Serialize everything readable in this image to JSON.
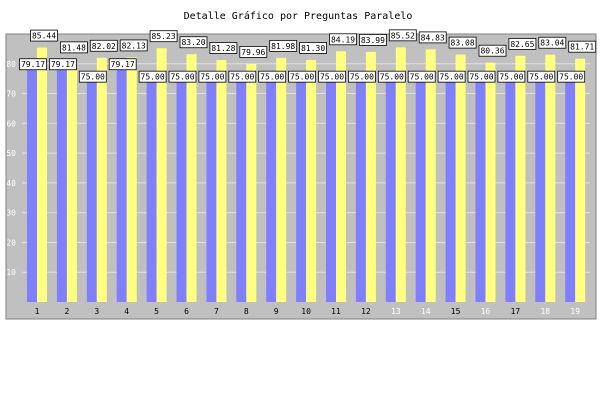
{
  "chart_data": {
    "type": "bar",
    "title": "Detalle Gráfico por Preguntas Paralelo",
    "xlabel": "",
    "ylabel": "",
    "ylim": [
      0,
      90
    ],
    "yticks": [
      10,
      20,
      30,
      40,
      50,
      60,
      70,
      80
    ],
    "grid": true,
    "legend": "none",
    "categories": [
      "1",
      "2",
      "3",
      "4",
      "5",
      "6",
      "7",
      "8",
      "9",
      "10",
      "11",
      "12",
      "13",
      "14",
      "15",
      "16",
      "17",
      "18",
      "19"
    ],
    "series": [
      {
        "color": "#8080ff",
        "values": [
          79.17,
          79.17,
          75.0,
          79.17,
          75.0,
          75.0,
          75.0,
          75.0,
          75.0,
          75.0,
          75.0,
          75.0,
          75.0,
          75.0,
          75.0,
          75.0,
          75.0,
          75.0,
          75.0
        ],
        "labels": [
          "79.17",
          "79.17",
          "75.00",
          "79.17",
          "75.00",
          "75.00",
          "75.00",
          "75.00",
          "75.00",
          "75.00",
          "75.00",
          "75.00",
          "75.00",
          "75.00",
          "75.00",
          "75.00",
          "75.00",
          "75.00",
          "75.00"
        ]
      },
      {
        "color": "#ffff80",
        "values": [
          85.44,
          81.48,
          82.02,
          82.13,
          85.23,
          83.2,
          81.28,
          79.96,
          81.98,
          81.3,
          84.19,
          83.99,
          85.52,
          84.83,
          83.08,
          80.36,
          82.65,
          83.04,
          81.71
        ],
        "labels": [
          "85.44",
          "81.48",
          "82.02",
          "82.13",
          "85.23",
          "83.20",
          "81.28",
          "79.96",
          "81.98",
          "81.30",
          "84.19",
          "83.99",
          "85.52",
          "84.83",
          "83.08",
          "80.36",
          "82.65",
          "83.04",
          "81.71"
        ]
      }
    ]
  },
  "colors": {
    "plot_background": "#c0c0c0",
    "gridline": "#e0e0e0",
    "axis_text": "#000000",
    "highlight_tick": "#ffffff",
    "label_box_fill": "#ffffff",
    "label_box_border": "#000000"
  }
}
